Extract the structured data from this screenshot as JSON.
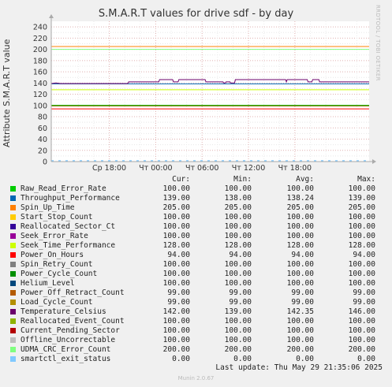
{
  "title": "S.M.A.R.T values for drive sdf - by day",
  "side_text": "RRDTOOL / TOBI OETIKER",
  "footer": {
    "last_update": "Last update: Thu May 29 21:35:06 2025",
    "version": "Munin 2.0.67"
  },
  "legend_headers": {
    "cur": "Cur:",
    "min": "Min:",
    "avg": "Avg:",
    "max": "Max:"
  },
  "chart_data": {
    "type": "line",
    "title": "S.M.A.R.T values for drive sdf - by day",
    "ylabel": "Attribute S.M.A.R.T value",
    "ylim": [
      0,
      250
    ],
    "yticks": [
      0,
      20,
      40,
      60,
      80,
      100,
      120,
      140,
      160,
      180,
      200,
      220,
      240
    ],
    "xlim_hours": [
      -13.5,
      27.6
    ],
    "xticks": [
      {
        "label": "Ср 18:00",
        "hour": -6
      },
      {
        "label": "Чт 00:00",
        "hour": 0
      },
      {
        "label": "Чт 06:00",
        "hour": 6
      },
      {
        "label": "Чт 12:00",
        "hour": 12
      },
      {
        "label": "Чт 18:00",
        "hour": 18
      }
    ],
    "grid": true,
    "legend": "bottom",
    "series": [
      {
        "name": "Raw_Read_Error_Rate",
        "color": "#00cc00",
        "cur": "100.00",
        "min": "100.00",
        "avg": "100.00",
        "max": "100.00",
        "value": 100
      },
      {
        "name": "Throughput_Performance",
        "color": "#0066b3",
        "cur": "139.00",
        "min": "138.00",
        "avg": "138.24",
        "max": "139.00",
        "value": 138.5
      },
      {
        "name": "Spin_Up_Time",
        "color": "#ff8000",
        "cur": "205.00",
        "min": "205.00",
        "avg": "205.00",
        "max": "205.00",
        "value": 205
      },
      {
        "name": "Start_Stop_Count",
        "color": "#ffcc00",
        "cur": "100.00",
        "min": "100.00",
        "avg": "100.00",
        "max": "100.00",
        "value": 100
      },
      {
        "name": "Reallocated_Sector_Ct",
        "color": "#330099",
        "cur": "100.00",
        "min": "100.00",
        "avg": "100.00",
        "max": "100.00",
        "value": 100
      },
      {
        "name": "Seek_Error_Rate",
        "color": "#990099",
        "cur": "100.00",
        "min": "100.00",
        "avg": "100.00",
        "max": "100.00",
        "value": 100
      },
      {
        "name": "Seek_Time_Performance",
        "color": "#ccff00",
        "cur": "128.00",
        "min": "128.00",
        "avg": "128.00",
        "max": "128.00",
        "value": 128
      },
      {
        "name": "Power_On_Hours",
        "color": "#ff0000",
        "cur": "94.00",
        "min": "94.00",
        "avg": "94.00",
        "max": "94.00",
        "value": 94
      },
      {
        "name": "Spin_Retry_Count",
        "color": "#808080",
        "cur": "100.00",
        "min": "100.00",
        "avg": "100.00",
        "max": "100.00",
        "value": 100
      },
      {
        "name": "Power_Cycle_Count",
        "color": "#008f00",
        "cur": "100.00",
        "min": "100.00",
        "avg": "100.00",
        "max": "100.00",
        "value": 100
      },
      {
        "name": "Helium_Level",
        "color": "#00487d",
        "cur": "100.00",
        "min": "100.00",
        "avg": "100.00",
        "max": "100.00",
        "value": 100
      },
      {
        "name": "Power_Off_Retract_Count",
        "color": "#b35a00",
        "cur": "99.00",
        "min": "99.00",
        "avg": "99.00",
        "max": "99.00",
        "value": 99
      },
      {
        "name": "Load_Cycle_Count",
        "color": "#b38f00",
        "cur": "99.00",
        "min": "99.00",
        "avg": "99.00",
        "max": "99.00",
        "value": 99
      },
      {
        "name": "Temperature_Celsius",
        "color": "#6b006b",
        "cur": "142.00",
        "min": "139.00",
        "avg": "142.35",
        "max": "146.00"
      },
      {
        "name": "Reallocated_Event_Count",
        "color": "#8fb300",
        "cur": "100.00",
        "min": "100.00",
        "avg": "100.00",
        "max": "100.00",
        "value": 100
      },
      {
        "name": "Current_Pending_Sector",
        "color": "#b30000",
        "cur": "100.00",
        "min": "100.00",
        "avg": "100.00",
        "max": "100.00",
        "value": 100
      },
      {
        "name": "Offline_Uncorrectable",
        "color": "#bebebe",
        "cur": "100.00",
        "min": "100.00",
        "avg": "100.00",
        "max": "100.00",
        "value": 100
      },
      {
        "name": "UDMA_CRC_Error_Count",
        "color": "#80ff80",
        "cur": "200.00",
        "min": "200.00",
        "avg": "200.00",
        "max": "200.00",
        "value": 200
      },
      {
        "name": "smartctl_exit_status",
        "color": "#80c9ff",
        "cur": "0.00",
        "min": "0.00",
        "avg": "0.00",
        "max": "0.00",
        "value": 0
      }
    ],
    "temperature_profile": [
      {
        "h": -13.5,
        "v": 139
      },
      {
        "h": -12.9,
        "v": 140
      },
      {
        "h": -12.3,
        "v": 139
      },
      {
        "h": -3.6,
        "v": 139
      },
      {
        "h": -3.5,
        "v": 142
      },
      {
        "h": 0.4,
        "v": 142
      },
      {
        "h": 0.5,
        "v": 146
      },
      {
        "h": 2.2,
        "v": 146
      },
      {
        "h": 2.3,
        "v": 142
      },
      {
        "h": 2.9,
        "v": 142
      },
      {
        "h": 3.0,
        "v": 146
      },
      {
        "h": 6.4,
        "v": 146
      },
      {
        "h": 6.5,
        "v": 142
      },
      {
        "h": 8.7,
        "v": 142
      },
      {
        "h": 8.8,
        "v": 140
      },
      {
        "h": 9.0,
        "v": 140
      },
      {
        "h": 9.1,
        "v": 142
      },
      {
        "h": 9.6,
        "v": 142
      },
      {
        "h": 9.7,
        "v": 140
      },
      {
        "h": 10.2,
        "v": 140
      },
      {
        "h": 10.3,
        "v": 146
      },
      {
        "h": 16.8,
        "v": 146
      },
      {
        "h": 16.9,
        "v": 142
      },
      {
        "h": 17.0,
        "v": 146
      },
      {
        "h": 19.6,
        "v": 146
      },
      {
        "h": 19.7,
        "v": 142
      },
      {
        "h": 20.2,
        "v": 142
      },
      {
        "h": 20.3,
        "v": 146
      },
      {
        "h": 21.1,
        "v": 146
      },
      {
        "h": 21.2,
        "v": 142
      },
      {
        "h": 27.6,
        "v": 142
      }
    ]
  }
}
